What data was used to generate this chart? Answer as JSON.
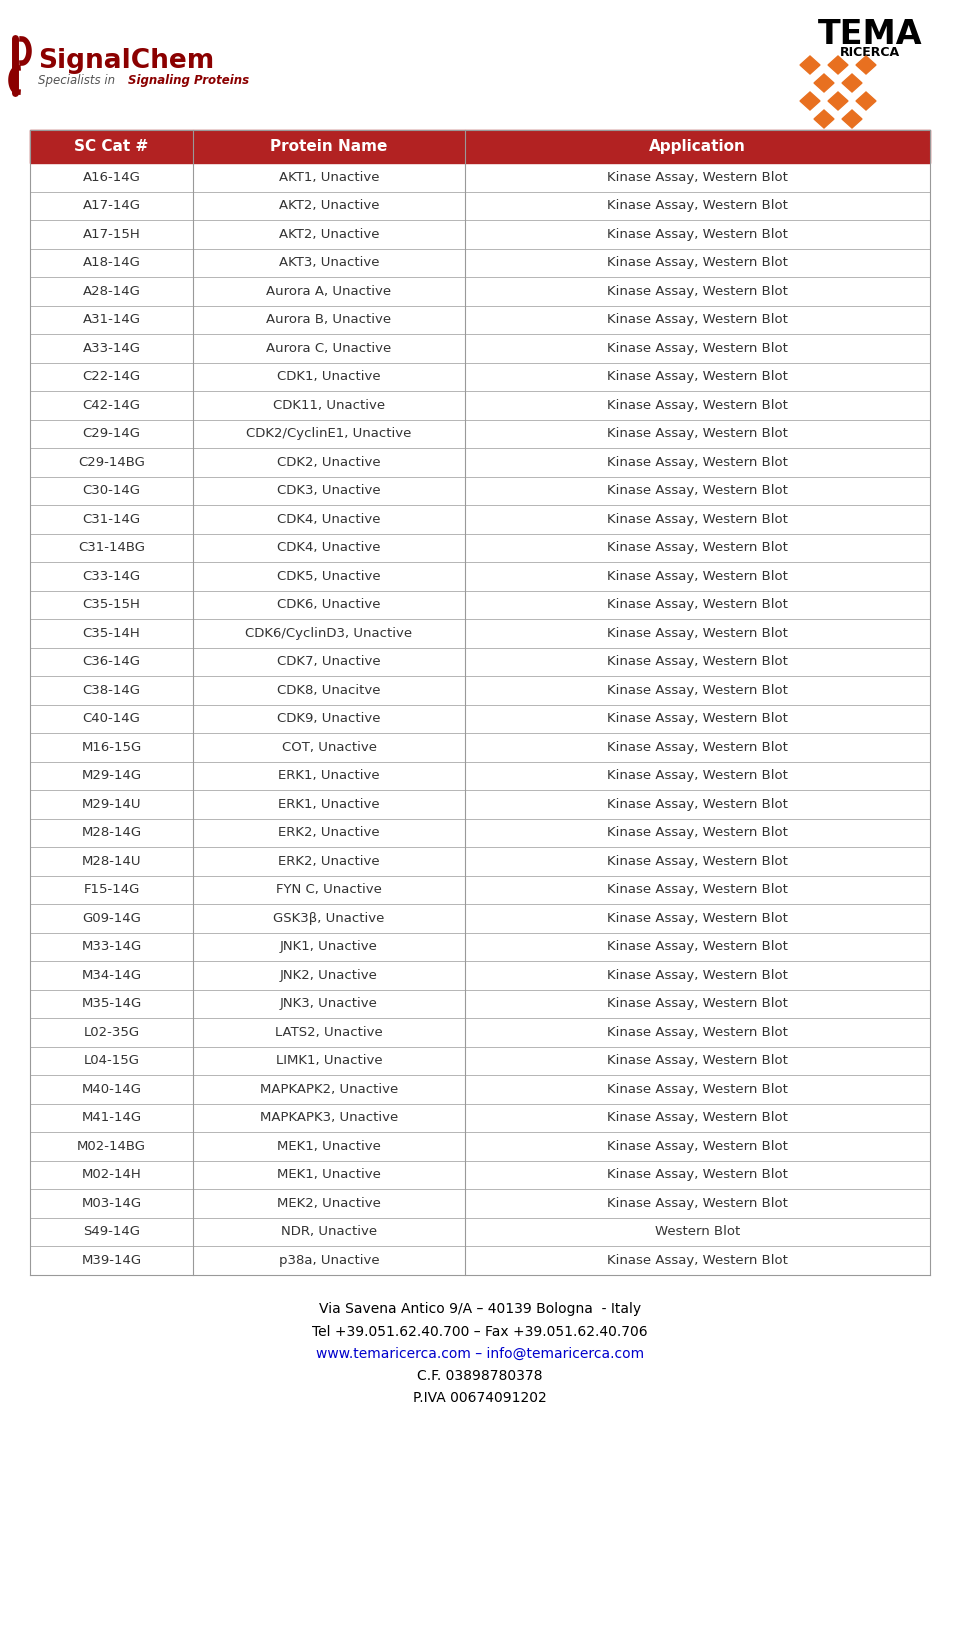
{
  "table_rows": [
    [
      "A16-14G",
      "AKT1, Unactive",
      "Kinase Assay, Western Blot"
    ],
    [
      "A17-14G",
      "AKT2, Unactive",
      "Kinase Assay, Western Blot"
    ],
    [
      "A17-15H",
      "AKT2, Unactive",
      "Kinase Assay, Western Blot"
    ],
    [
      "A18-14G",
      "AKT3, Unactive",
      "Kinase Assay, Western Blot"
    ],
    [
      "A28-14G",
      "Aurora A, Unactive",
      "Kinase Assay, Western Blot"
    ],
    [
      "A31-14G",
      "Aurora B, Unactive",
      "Kinase Assay, Western Blot"
    ],
    [
      "A33-14G",
      "Aurora C, Unactive",
      "Kinase Assay, Western Blot"
    ],
    [
      "C22-14G",
      "CDK1, Unactive",
      "Kinase Assay, Western Blot"
    ],
    [
      "C42-14G",
      "CDK11, Unactive",
      "Kinase Assay, Western Blot"
    ],
    [
      "C29-14G",
      "CDK2/CyclinE1, Unactive",
      "Kinase Assay, Western Blot"
    ],
    [
      "C29-14BG",
      "CDK2, Unactive",
      "Kinase Assay, Western Blot"
    ],
    [
      "C30-14G",
      "CDK3, Unactive",
      "Kinase Assay, Western Blot"
    ],
    [
      "C31-14G",
      "CDK4, Unactive",
      "Kinase Assay, Western Blot"
    ],
    [
      "C31-14BG",
      "CDK4, Unactive",
      "Kinase Assay, Western Blot"
    ],
    [
      "C33-14G",
      "CDK5, Unactive",
      "Kinase Assay, Western Blot"
    ],
    [
      "C35-15H",
      "CDK6, Unactive",
      "Kinase Assay, Western Blot"
    ],
    [
      "C35-14H",
      "CDK6/CyclinD3, Unactive",
      "Kinase Assay, Western Blot"
    ],
    [
      "C36-14G",
      "CDK7, Unactive",
      "Kinase Assay, Western Blot"
    ],
    [
      "C38-14G",
      "CDK8, Unacitve",
      "Kinase Assay, Western Blot"
    ],
    [
      "C40-14G",
      "CDK9, Unactive",
      "Kinase Assay, Western Blot"
    ],
    [
      "M16-15G",
      "COT, Unactive",
      "Kinase Assay, Western Blot"
    ],
    [
      "M29-14G",
      "ERK1, Unactive",
      "Kinase Assay, Western Blot"
    ],
    [
      "M29-14U",
      "ERK1, Unactive",
      "Kinase Assay, Western Blot"
    ],
    [
      "M28-14G",
      "ERK2, Unactive",
      "Kinase Assay, Western Blot"
    ],
    [
      "M28-14U",
      "ERK2, Unactive",
      "Kinase Assay, Western Blot"
    ],
    [
      "F15-14G",
      "FYN C, Unactive",
      "Kinase Assay, Western Blot"
    ],
    [
      "G09-14G",
      "GSK3β, Unactive",
      "Kinase Assay, Western Blot"
    ],
    [
      "M33-14G",
      "JNK1, Unactive",
      "Kinase Assay, Western Blot"
    ],
    [
      "M34-14G",
      "JNK2, Unactive",
      "Kinase Assay, Western Blot"
    ],
    [
      "M35-14G",
      "JNK3, Unactive",
      "Kinase Assay, Western Blot"
    ],
    [
      "L02-35G",
      "LATS2, Unactive",
      "Kinase Assay, Western Blot"
    ],
    [
      "L04-15G",
      "LIMK1, Unactive",
      "Kinase Assay, Western Blot"
    ],
    [
      "M40-14G",
      "MAPKAPK2, Unactive",
      "Kinase Assay, Western Blot"
    ],
    [
      "M41-14G",
      "MAPKAPK3, Unactive",
      "Kinase Assay, Western Blot"
    ],
    [
      "M02-14BG",
      "MEK1, Unactive",
      "Kinase Assay, Western Blot"
    ],
    [
      "M02-14H",
      "MEK1, Unactive",
      "Kinase Assay, Western Blot"
    ],
    [
      "M03-14G",
      "MEK2, Unactive",
      "Kinase Assay, Western Blot"
    ],
    [
      "S49-14G",
      "NDR, Unactive",
      "Western Blot"
    ],
    [
      "M39-14G",
      "p38a, Unactive",
      "Kinase Assay, Western Blot"
    ]
  ],
  "header": [
    "SC Cat #",
    "Protein Name",
    "Application"
  ],
  "header_bg": "#B22222",
  "header_text_color": "#FFFFFF",
  "row_text_color": "#333333",
  "border_color": "#999999",
  "bg_color": "#FFFFFF",
  "footer_lines": [
    "Via Savena Antico 9/A – 40139 Bologna  - Italy",
    "Tel +39.051.62.40.700 – Fax +39.051.62.40.706",
    "www.temaricerca.com – info@temaricerca.com",
    "C.F. 03898780378",
    "P.IVA 00674091202"
  ],
  "footer_link_color": "#0000CD",
  "footer_normal_color": "#000000",
  "signalchem_color": "#8B0000",
  "signalchem_sub_color": "#555555",
  "diamond_color": "#E87020",
  "tema_color": "#000000"
}
